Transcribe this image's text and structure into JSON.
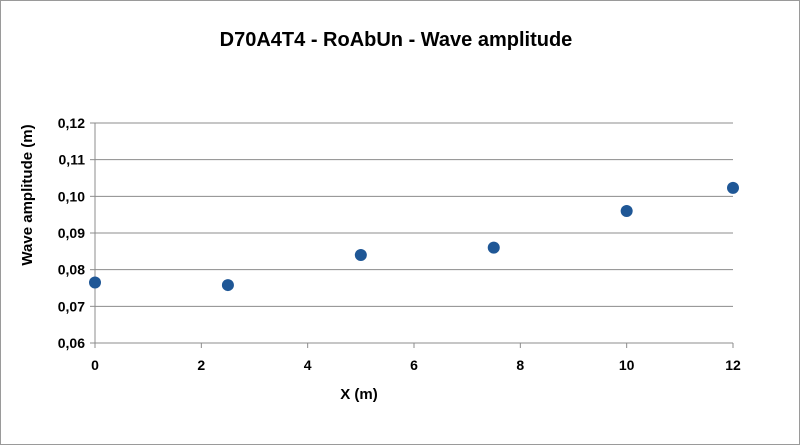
{
  "chart_data": {
    "type": "scatter",
    "title": "D70A4T4  - RoAbUn - Wave amplitude",
    "xlabel": "X (m)",
    "ylabel": "Wave amplitude (m)",
    "xlim": [
      0,
      12
    ],
    "ylim": [
      0.06,
      0.12
    ],
    "x_ticks": [
      0,
      2,
      4,
      6,
      8,
      10,
      12
    ],
    "x_tick_labels": [
      "0",
      "2",
      "4",
      "6",
      "8",
      "10",
      "12"
    ],
    "y_ticks": [
      0.06,
      0.07,
      0.08,
      0.09,
      0.1,
      0.11,
      0.12
    ],
    "y_tick_labels": [
      "0,06",
      "0,07",
      "0,08",
      "0,09",
      "0,10",
      "0,11",
      "0,12"
    ],
    "grid": "horizontal",
    "legend": "none",
    "series": [
      {
        "color": "#1f5796",
        "points": [
          {
            "x": 0,
            "y": 0.0765
          },
          {
            "x": 2.5,
            "y": 0.0758
          },
          {
            "x": 5,
            "y": 0.084
          },
          {
            "x": 7.5,
            "y": 0.086
          },
          {
            "x": 10,
            "y": 0.096
          },
          {
            "x": 12,
            "y": 0.1023
          }
        ]
      }
    ]
  }
}
